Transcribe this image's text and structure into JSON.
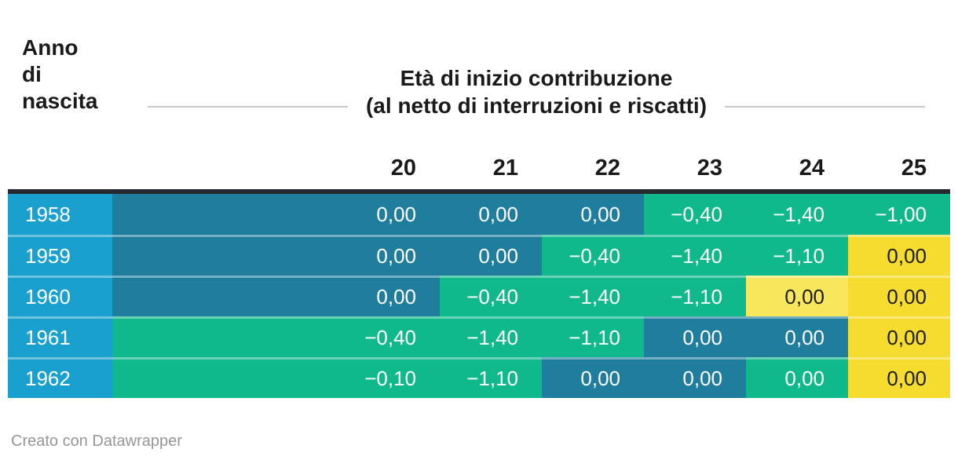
{
  "header": {
    "row_title": "Anno\ndi\nnascita",
    "group_line1": "Età di inizio contribuzione",
    "group_line2": "(al netto di interruzioni e riscatti)"
  },
  "table": {
    "columns": [
      "20",
      "21",
      "22",
      "23",
      "24",
      "25"
    ],
    "rows": [
      {
        "year": "1958",
        "cells": [
          {
            "value": "0,00",
            "color": "teal"
          },
          {
            "value": "0,00",
            "color": "teal"
          },
          {
            "value": "0,00",
            "color": "teal"
          },
          {
            "value": "−0,40",
            "color": "green"
          },
          {
            "value": "−1,40",
            "color": "green"
          },
          {
            "value": "−1,00",
            "color": "green"
          }
        ]
      },
      {
        "year": "1959",
        "cells": [
          {
            "value": "0,00",
            "color": "teal"
          },
          {
            "value": "0,00",
            "color": "teal"
          },
          {
            "value": "−0,40",
            "color": "green"
          },
          {
            "value": "−1,40",
            "color": "green"
          },
          {
            "value": "−1,10",
            "color": "green"
          },
          {
            "value": "0,00",
            "color": "yellow"
          }
        ]
      },
      {
        "year": "1960",
        "cells": [
          {
            "value": "0,00",
            "color": "teal"
          },
          {
            "value": "−0,40",
            "color": "green"
          },
          {
            "value": "−1,40",
            "color": "green"
          },
          {
            "value": "−1,10",
            "color": "green"
          },
          {
            "value": "0,00",
            "color": "light_yellow"
          },
          {
            "value": "0,00",
            "color": "yellow"
          }
        ]
      },
      {
        "year": "1961",
        "cells": [
          {
            "value": "−0,40",
            "color": "green"
          },
          {
            "value": "−1,40",
            "color": "green"
          },
          {
            "value": "−1,10",
            "color": "green"
          },
          {
            "value": "0,00",
            "color": "teal"
          },
          {
            "value": "0,00",
            "color": "teal"
          },
          {
            "value": "0,00",
            "color": "yellow"
          }
        ]
      },
      {
        "year": "1962",
        "cells": [
          {
            "value": "−0,10",
            "color": "green"
          },
          {
            "value": "−1,10",
            "color": "green"
          },
          {
            "value": "0,00",
            "color": "teal"
          },
          {
            "value": "0,00",
            "color": "teal"
          },
          {
            "value": "0,00",
            "color": "green"
          },
          {
            "value": "0,00",
            "color": "yellow"
          }
        ]
      }
    ]
  },
  "footer": {
    "credit": "Creato con Datawrapper"
  },
  "colors": {
    "row_label": {
      "bg": "#1aa0ce",
      "text": "#ffffff"
    },
    "teal": {
      "bg": "#1f7e9d",
      "text": "#ffffff"
    },
    "green": {
      "bg": "#10b98c",
      "text": "#ffffff"
    },
    "yellow": {
      "bg": "#f5dc2f",
      "text": "#1d1d1d"
    },
    "light_yellow": {
      "bg": "#f8e75c",
      "text": "#1d1d1d"
    },
    "top_border": "#26292d",
    "rule": "#c9c9c9",
    "heading_text": "#1a1a1a",
    "credit_text": "#969696"
  },
  "chart_data": {
    "type": "heatmap",
    "title": "Età di inizio contribuzione (al netto di interruzioni e riscatti)",
    "row_axis_label": "Anno di nascita",
    "columns": [
      20,
      21,
      22,
      23,
      24,
      25
    ],
    "rows": [
      1958,
      1959,
      1960,
      1961,
      1962
    ],
    "values": [
      [
        0.0,
        0.0,
        0.0,
        -0.4,
        -1.4,
        -1.0
      ],
      [
        0.0,
        0.0,
        -0.4,
        -1.4,
        -1.1,
        0.0
      ],
      [
        0.0,
        -0.4,
        -1.4,
        -1.1,
        0.0,
        0.0
      ],
      [
        -0.4,
        -1.4,
        -1.1,
        0.0,
        0.0,
        0.0
      ],
      [
        -0.1,
        -1.1,
        0.0,
        0.0,
        0.0,
        0.0
      ]
    ],
    "cell_colors": [
      [
        "teal",
        "teal",
        "teal",
        "green",
        "green",
        "green"
      ],
      [
        "teal",
        "teal",
        "green",
        "green",
        "green",
        "yellow"
      ],
      [
        "teal",
        "green",
        "green",
        "green",
        "light_yellow",
        "yellow"
      ],
      [
        "green",
        "green",
        "green",
        "teal",
        "teal",
        "yellow"
      ],
      [
        "green",
        "green",
        "teal",
        "teal",
        "green",
        "yellow"
      ]
    ],
    "number_format": "comma-decimal, 2 places",
    "legend_position": "none",
    "credit": "Creato con Datawrapper"
  }
}
